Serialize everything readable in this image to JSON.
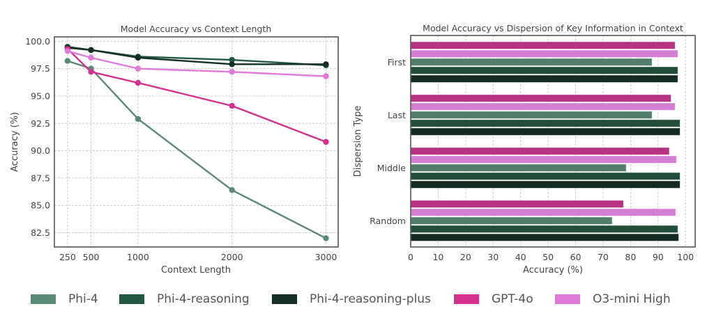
{
  "colors": {
    "Phi-4": "#5a8a75",
    "Phi-4-reasoning": "#235840",
    "Phi-4-reasoning-plus": "#132e22",
    "GPT-4o": "#d4308f",
    "O3-mini High": "#e07ad8"
  },
  "bar_colors": {
    "Phi-4": "#527d6a",
    "Phi-4-reasoning": "#214d39",
    "Phi-4-reasoning-plus": "#132b20",
    "GPT-4o": "#b83282",
    "O3-mini High": "#d37fd3"
  },
  "legend": {
    "items": [
      "Phi-4",
      "Phi-4-reasoning",
      "Phi-4-reasoning-plus",
      "GPT-4o",
      "O3-mini High"
    ]
  },
  "chart_data": [
    {
      "type": "line",
      "title": "Model Accuracy vs Context Length",
      "xlabel": "Context Length",
      "ylabel": "Accuracy (%)",
      "x": [
        250,
        500,
        1000,
        2000,
        3000
      ],
      "xticks": [
        "250",
        "500",
        "1000",
        "2000",
        "3000"
      ],
      "yticks": [
        "82.5",
        "85.0",
        "87.5",
        "90.0",
        "92.5",
        "95.0",
        "97.5",
        "100.0"
      ],
      "ylim": [
        81.2,
        100.4
      ],
      "xlim": [
        110,
        3130
      ],
      "grid": true,
      "series": [
        {
          "name": "Phi-4",
          "values": [
            98.2,
            97.5,
            92.9,
            86.4,
            82.0
          ]
        },
        {
          "name": "Phi-4-reasoning",
          "values": [
            99.5,
            99.2,
            98.6,
            98.3,
            97.8
          ]
        },
        {
          "name": "Phi-4-reasoning-plus",
          "values": [
            99.4,
            99.2,
            98.5,
            97.9,
            97.9
          ]
        },
        {
          "name": "GPT-4o",
          "values": [
            99.3,
            97.2,
            96.2,
            94.1,
            90.8
          ]
        },
        {
          "name": "O3-mini High",
          "values": [
            99.1,
            98.5,
            97.5,
            97.2,
            96.8
          ]
        }
      ]
    },
    {
      "type": "bar",
      "orientation": "horizontal",
      "title": "Model Accuracy vs Dispersion of Key Information in Context",
      "xlabel": "Accuracy (%)",
      "ylabel": "Dispersion Type",
      "categories": [
        "First",
        "Last",
        "Middle",
        "Random"
      ],
      "xticks": [
        "0",
        "10",
        "20",
        "30",
        "40",
        "50",
        "60",
        "70",
        "80",
        "90",
        "100"
      ],
      "xlim": [
        0,
        103.5
      ],
      "grid": true,
      "series": [
        {
          "name": "GPT-4o",
          "values": [
            96.2,
            94.7,
            94.1,
            77.4
          ]
        },
        {
          "name": "O3-mini High",
          "values": [
            97.2,
            96.2,
            96.7,
            96.4
          ]
        },
        {
          "name": "Phi-4",
          "values": [
            87.8,
            87.8,
            78.4,
            73.3
          ]
        },
        {
          "name": "Phi-4-reasoning",
          "values": [
            97.2,
            98.0,
            98.0,
            97.2
          ]
        },
        {
          "name": "Phi-4-reasoning-plus",
          "values": [
            97.2,
            98.0,
            98.0,
            97.5
          ]
        }
      ]
    }
  ]
}
